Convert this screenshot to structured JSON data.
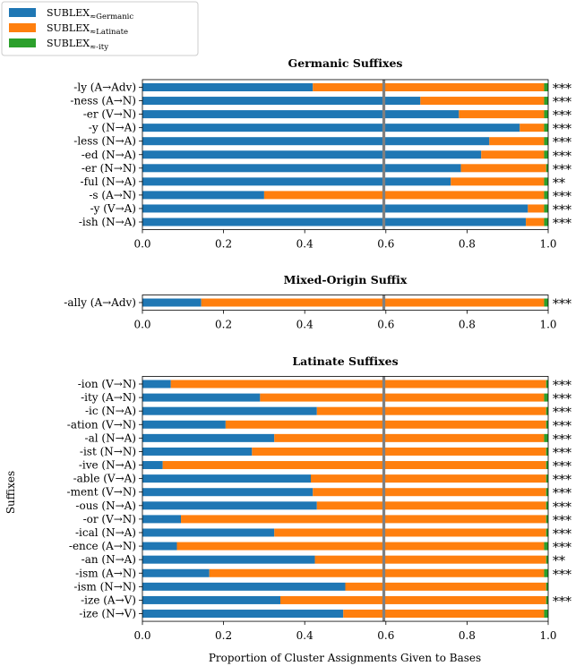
{
  "chart_data": {
    "type": "bar",
    "orientation": "horizontal",
    "stacked": true,
    "xlabel": "Proportion of Cluster Assignments Given to Bases",
    "ylabel": "Suffixes",
    "xlim": [
      0,
      1
    ],
    "xticks": [
      "0.0",
      "0.2",
      "0.4",
      "0.6",
      "0.8",
      "1.0"
    ],
    "reference_line": 0.595,
    "legend": {
      "placement": "top-left",
      "entries": [
        {
          "label": "SUBLEX",
          "sub": "≈Germanic",
          "color": "#1f77b4"
        },
        {
          "label": "SUBLEX",
          "sub": "≈Latinate",
          "color": "#ff7f0e"
        },
        {
          "label": "SUBLEX",
          "sub": "≈-ity",
          "color": "#2ca02c"
        }
      ]
    },
    "series_colors": {
      "germanic": "#1f77b4",
      "latinate": "#ff7f0e",
      "ity": "#2ca02c"
    },
    "panels": [
      {
        "title": "Germanic Suffixes",
        "rows": [
          {
            "label": "-ly (A→Adv)",
            "germanic": 0.42,
            "latinate": 0.57,
            "ity": 0.01,
            "sig": "***"
          },
          {
            "label": "-ness (A→N)",
            "germanic": 0.685,
            "latinate": 0.305,
            "ity": 0.01,
            "sig": "***"
          },
          {
            "label": "-er (V→N)",
            "germanic": 0.78,
            "latinate": 0.21,
            "ity": 0.01,
            "sig": "***"
          },
          {
            "label": "-y (N→A)",
            "germanic": 0.93,
            "latinate": 0.06,
            "ity": 0.01,
            "sig": "***"
          },
          {
            "label": "-less (N→A)",
            "germanic": 0.855,
            "latinate": 0.135,
            "ity": 0.01,
            "sig": "***"
          },
          {
            "label": "-ed (N→A)",
            "germanic": 0.835,
            "latinate": 0.155,
            "ity": 0.01,
            "sig": "***"
          },
          {
            "label": "-er (N→N)",
            "germanic": 0.785,
            "latinate": 0.21,
            "ity": 0.005,
            "sig": "***"
          },
          {
            "label": "-ful (N→A)",
            "germanic": 0.76,
            "latinate": 0.23,
            "ity": 0.01,
            "sig": "**"
          },
          {
            "label": "-s (A→N)",
            "germanic": 0.3,
            "latinate": 0.69,
            "ity": 0.01,
            "sig": "***"
          },
          {
            "label": "-y (V→A)",
            "germanic": 0.95,
            "latinate": 0.04,
            "ity": 0.01,
            "sig": "***"
          },
          {
            "label": "-ish (N→A)",
            "germanic": 0.945,
            "latinate": 0.045,
            "ity": 0.01,
            "sig": "***"
          }
        ]
      },
      {
        "title": "Mixed-Origin Suffix",
        "rows": [
          {
            "label": "-ally (A→Adv)",
            "germanic": 0.145,
            "latinate": 0.845,
            "ity": 0.01,
            "sig": "***"
          }
        ]
      },
      {
        "title": "Latinate Suffixes",
        "rows": [
          {
            "label": "-ion (V→N)",
            "germanic": 0.07,
            "latinate": 0.925,
            "ity": 0.005,
            "sig": "***"
          },
          {
            "label": "-ity (A→N)",
            "germanic": 0.29,
            "latinate": 0.7,
            "ity": 0.01,
            "sig": "***"
          },
          {
            "label": "-ic (N→A)",
            "germanic": 0.43,
            "latinate": 0.565,
            "ity": 0.005,
            "sig": "***"
          },
          {
            "label": "-ation (V→N)",
            "germanic": 0.205,
            "latinate": 0.79,
            "ity": 0.005,
            "sig": "***"
          },
          {
            "label": "-al (N→A)",
            "germanic": 0.325,
            "latinate": 0.665,
            "ity": 0.01,
            "sig": "***"
          },
          {
            "label": "-ist (N→N)",
            "germanic": 0.27,
            "latinate": 0.725,
            "ity": 0.005,
            "sig": "***"
          },
          {
            "label": "-ive (N→A)",
            "germanic": 0.05,
            "latinate": 0.945,
            "ity": 0.005,
            "sig": "***"
          },
          {
            "label": "-able (V→A)",
            "germanic": 0.415,
            "latinate": 0.58,
            "ity": 0.005,
            "sig": "***"
          },
          {
            "label": "-ment (V→N)",
            "germanic": 0.42,
            "latinate": 0.575,
            "ity": 0.005,
            "sig": "***"
          },
          {
            "label": "-ous (N→A)",
            "germanic": 0.43,
            "latinate": 0.565,
            "ity": 0.005,
            "sig": "***"
          },
          {
            "label": "-or (V→N)",
            "germanic": 0.095,
            "latinate": 0.9,
            "ity": 0.005,
            "sig": "***"
          },
          {
            "label": "-ical (N→A)",
            "germanic": 0.325,
            "latinate": 0.67,
            "ity": 0.005,
            "sig": "***"
          },
          {
            "label": "-ence (A→N)",
            "germanic": 0.085,
            "latinate": 0.905,
            "ity": 0.01,
            "sig": "***"
          },
          {
            "label": "-an (N→A)",
            "germanic": 0.425,
            "latinate": 0.57,
            "ity": 0.005,
            "sig": "**"
          },
          {
            "label": "-ism (A→N)",
            "germanic": 0.165,
            "latinate": 0.825,
            "ity": 0.01,
            "sig": "***"
          },
          {
            "label": "-ism (N→N)",
            "germanic": 0.5,
            "latinate": 0.495,
            "ity": 0.005,
            "sig": ""
          },
          {
            "label": "-ize (A→V)",
            "germanic": 0.34,
            "latinate": 0.655,
            "ity": 0.005,
            "sig": "***"
          },
          {
            "label": "-ize (N→V)",
            "germanic": 0.495,
            "latinate": 0.495,
            "ity": 0.01,
            "sig": ""
          }
        ]
      }
    ]
  }
}
